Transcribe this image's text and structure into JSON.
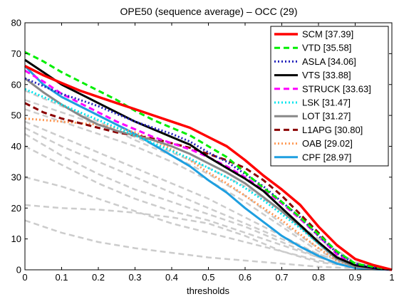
{
  "chart_data": {
    "type": "line",
    "title": "OPE50 (sequence average) – OCC (29)",
    "xlabel": "thresholds",
    "ylabel": "",
    "xlim": [
      0,
      1
    ],
    "ylim": [
      0,
      80
    ],
    "xticks": [
      0,
      0.1,
      0.2,
      0.3,
      0.4,
      0.5,
      0.6,
      0.7,
      0.8,
      0.9,
      1
    ],
    "yticks": [
      0,
      10,
      20,
      30,
      40,
      50,
      60,
      70,
      80
    ],
    "xtick_labels": [
      "0",
      "0.1",
      "0.2",
      "0.3",
      "0.4",
      "0.5",
      "0.6",
      "0.7",
      "0.8",
      "0.9",
      "1"
    ],
    "ytick_labels": [
      "0",
      "10",
      "20",
      "30",
      "40",
      "50",
      "60",
      "70",
      "80"
    ],
    "grid": false,
    "legend_position": "top-right",
    "series": [
      {
        "name": "SCM",
        "score": "[37.39]",
        "color": "#ff0000",
        "dash": "solid",
        "x": [
          0,
          0.05,
          0.1,
          0.15,
          0.2,
          0.25,
          0.3,
          0.35,
          0.4,
          0.45,
          0.5,
          0.55,
          0.6,
          0.65,
          0.7,
          0.75,
          0.8,
          0.85,
          0.9,
          0.95,
          1
        ],
        "y": [
          66,
          63,
          60.5,
          58,
          56,
          54,
          52,
          50,
          48,
          46,
          43,
          40,
          35.5,
          30.5,
          26,
          21,
          14,
          8,
          3.5,
          1.5,
          0
        ]
      },
      {
        "name": "VTD",
        "score": "[35.58]",
        "color": "#00ee00",
        "dash": "dashed",
        "x": [
          0,
          0.05,
          0.1,
          0.15,
          0.2,
          0.25,
          0.3,
          0.35,
          0.4,
          0.45,
          0.5,
          0.55,
          0.6,
          0.65,
          0.7,
          0.75,
          0.8,
          0.85,
          0.9,
          0.95,
          1
        ],
        "y": [
          70.5,
          67.5,
          64,
          61,
          58,
          55,
          51.5,
          48.5,
          46,
          43.5,
          40,
          36.5,
          31.5,
          26.5,
          22,
          17,
          11.5,
          6,
          2,
          1,
          0
        ]
      },
      {
        "name": "ASLA",
        "score": "[34.06]",
        "color": "#2222bb",
        "dash": "dotted",
        "x": [
          0,
          0.05,
          0.1,
          0.15,
          0.2,
          0.25,
          0.3,
          0.35,
          0.4,
          0.45,
          0.5,
          0.55,
          0.6,
          0.65,
          0.7,
          0.75,
          0.8,
          0.85,
          0.9,
          0.95,
          1
        ],
        "y": [
          62,
          59.5,
          57,
          55,
          53,
          50.5,
          48,
          46,
          44,
          41.5,
          38,
          35,
          31,
          27,
          22,
          17,
          11,
          5.5,
          2,
          0.8,
          0
        ]
      },
      {
        "name": "VTS",
        "score": "[33.88]",
        "color": "#000000",
        "dash": "solid",
        "x": [
          0,
          0.05,
          0.1,
          0.15,
          0.2,
          0.25,
          0.3,
          0.35,
          0.4,
          0.45,
          0.5,
          0.55,
          0.6,
          0.65,
          0.7,
          0.75,
          0.8,
          0.85,
          0.9,
          0.95,
          1
        ],
        "y": [
          68,
          64,
          60,
          57,
          54,
          51,
          48,
          45.5,
          43,
          40.5,
          36.5,
          33,
          29.5,
          25.5,
          20,
          14.5,
          9,
          4,
          1.5,
          0.6,
          0
        ]
      },
      {
        "name": "STRUCK",
        "score": "[33.63]",
        "color": "#ff00ff",
        "dash": "dashed",
        "x": [
          0,
          0.05,
          0.1,
          0.15,
          0.2,
          0.25,
          0.3,
          0.35,
          0.4,
          0.45,
          0.5,
          0.55,
          0.6,
          0.65,
          0.7,
          0.75,
          0.8,
          0.85,
          0.9,
          0.95,
          1
        ],
        "y": [
          64.5,
          61,
          57,
          54,
          51,
          48,
          45.5,
          43,
          41,
          39,
          36.5,
          33.5,
          30,
          26,
          21.5,
          16.5,
          11,
          5,
          1.5,
          0.5,
          0
        ]
      },
      {
        "name": "LSK",
        "score": "[31.47]",
        "color": "#00e5ee",
        "dash": "dotted",
        "x": [
          0,
          0.05,
          0.1,
          0.15,
          0.2,
          0.25,
          0.3,
          0.35,
          0.4,
          0.45,
          0.5,
          0.55,
          0.6,
          0.65,
          0.7,
          0.75,
          0.8,
          0.85,
          0.9,
          0.95,
          1
        ],
        "y": [
          58.5,
          56,
          53.5,
          51,
          48.5,
          46,
          43.5,
          41,
          38.5,
          36,
          33,
          30,
          26.5,
          22.5,
          18,
          13.5,
          8.5,
          4,
          1.5,
          0.5,
          0
        ]
      },
      {
        "name": "LOT",
        "score": "[31.27]",
        "color": "#888888",
        "dash": "solid",
        "x": [
          0,
          0.05,
          0.1,
          0.15,
          0.2,
          0.25,
          0.3,
          0.35,
          0.4,
          0.45,
          0.5,
          0.55,
          0.6,
          0.65,
          0.7,
          0.75,
          0.8,
          0.85,
          0.9,
          0.95,
          1
        ],
        "y": [
          62,
          57.5,
          53.5,
          50,
          47,
          45,
          43.5,
          42,
          40,
          37.5,
          34.5,
          31.5,
          28,
          23.5,
          19,
          14,
          8.5,
          3.5,
          1,
          0.4,
          0
        ]
      },
      {
        "name": "L1APG",
        "score": "[30.80]",
        "color": "#8b0000",
        "dash": "dashed",
        "x": [
          0,
          0.05,
          0.1,
          0.15,
          0.2,
          0.25,
          0.3,
          0.35,
          0.4,
          0.45,
          0.5,
          0.55,
          0.6,
          0.65,
          0.7,
          0.75,
          0.8,
          0.85,
          0.9,
          0.95,
          1
        ],
        "y": [
          54,
          51,
          49,
          47.5,
          46,
          44.5,
          43.5,
          42.5,
          41,
          39.5,
          37.5,
          35.5,
          33,
          29,
          24,
          18,
          12,
          5.5,
          2,
          0.7,
          0
        ]
      },
      {
        "name": "OAB",
        "score": "[29.02]",
        "color": "#ff9955",
        "dash": "dotted",
        "x": [
          0,
          0.05,
          0.1,
          0.15,
          0.2,
          0.25,
          0.3,
          0.35,
          0.4,
          0.45,
          0.5,
          0.55,
          0.6,
          0.65,
          0.7,
          0.75,
          0.8,
          0.85,
          0.9,
          0.95,
          1
        ],
        "y": [
          49,
          48.5,
          48,
          47.5,
          47,
          46,
          44.5,
          42,
          39,
          35.5,
          31.5,
          28,
          24,
          20,
          16,
          11.5,
          7,
          3,
          1,
          0.4,
          0
        ]
      },
      {
        "name": "CPF",
        "score": "[28.97]",
        "color": "#1e9fe0",
        "dash": "solid",
        "x": [
          0,
          0.05,
          0.1,
          0.15,
          0.2,
          0.25,
          0.3,
          0.35,
          0.4,
          0.45,
          0.5,
          0.55,
          0.6,
          0.65,
          0.7,
          0.75,
          0.8,
          0.85,
          0.9,
          0.95,
          1
        ],
        "y": [
          66,
          60,
          56,
          53,
          50,
          47,
          44,
          40.5,
          37,
          33.5,
          29,
          25,
          20,
          15.5,
          11,
          7.5,
          4.5,
          2,
          0.6,
          0.2,
          0
        ]
      }
    ],
    "background_series": [
      {
        "color": "#cccccc",
        "dash": "dashed",
        "x": [
          0,
          0.1,
          0.2,
          0.3,
          0.4,
          0.5,
          0.6,
          0.7,
          0.8,
          0.9,
          1
        ],
        "y": [
          58,
          53,
          48,
          42,
          37,
          31,
          24,
          15,
          7,
          2,
          0
        ]
      },
      {
        "color": "#cccccc",
        "dash": "dashed",
        "x": [
          0,
          0.1,
          0.2,
          0.3,
          0.4,
          0.5,
          0.6,
          0.7,
          0.8,
          0.9,
          1
        ],
        "y": [
          52,
          48,
          44,
          40,
          35,
          29,
          22,
          14,
          6,
          1.5,
          0
        ]
      },
      {
        "color": "#cccccc",
        "dash": "dashed",
        "x": [
          0,
          0.1,
          0.2,
          0.3,
          0.4,
          0.5,
          0.6,
          0.7,
          0.8,
          0.9,
          1
        ],
        "y": [
          48,
          43,
          38,
          33,
          28,
          23,
          17,
          11,
          5,
          1.5,
          0
        ]
      },
      {
        "color": "#cccccc",
        "dash": "dashed",
        "x": [
          0,
          0.1,
          0.2,
          0.3,
          0.4,
          0.5,
          0.6,
          0.7,
          0.8,
          0.9,
          1
        ],
        "y": [
          46,
          40,
          35,
          30,
          25,
          20,
          15,
          10,
          5,
          1.5,
          0
        ]
      },
      {
        "color": "#cccccc",
        "dash": "dashed",
        "x": [
          0,
          0.1,
          0.2,
          0.3,
          0.4,
          0.5,
          0.6,
          0.7,
          0.8,
          0.9,
          1
        ],
        "y": [
          44,
          37,
          31,
          26,
          22,
          18,
          14,
          9,
          4,
          1,
          0
        ]
      },
      {
        "color": "#cccccc",
        "dash": "dashed",
        "x": [
          0,
          0.1,
          0.2,
          0.3,
          0.4,
          0.5,
          0.6,
          0.7,
          0.8,
          0.9,
          1
        ],
        "y": [
          40,
          34,
          28,
          23,
          19,
          16,
          12,
          8,
          4,
          1,
          0
        ]
      },
      {
        "color": "#cccccc",
        "dash": "dashed",
        "x": [
          0,
          0.1,
          0.2,
          0.3,
          0.4,
          0.5,
          0.6,
          0.7,
          0.8,
          0.9,
          1
        ],
        "y": [
          30,
          27,
          23,
          19,
          15,
          12,
          9,
          6,
          3,
          1,
          0
        ]
      },
      {
        "color": "#cccccc",
        "dash": "dashed",
        "x": [
          0,
          0.1,
          0.2,
          0.3,
          0.4,
          0.5,
          0.6,
          0.7,
          0.8,
          0.9,
          1
        ],
        "y": [
          21,
          20,
          19.5,
          18.5,
          17,
          15,
          11,
          6,
          2.5,
          1,
          0
        ]
      },
      {
        "color": "#cccccc",
        "dash": "dashed",
        "x": [
          0,
          0.1,
          0.2,
          0.3,
          0.4,
          0.5,
          0.6,
          0.7,
          0.8,
          0.9,
          1
        ],
        "y": [
          16,
          12,
          9,
          7,
          5.5,
          4,
          3,
          2,
          1,
          0.5,
          0
        ]
      },
      {
        "color": "#cccccc",
        "dash": "dashed",
        "x": [
          0,
          0.1,
          0.2,
          0.3,
          0.4,
          0.5,
          0.6,
          0.7,
          0.8,
          0.9,
          1
        ],
        "y": [
          55,
          51,
          47,
          43,
          38,
          33,
          27,
          19,
          10,
          2.5,
          0
        ]
      }
    ]
  }
}
